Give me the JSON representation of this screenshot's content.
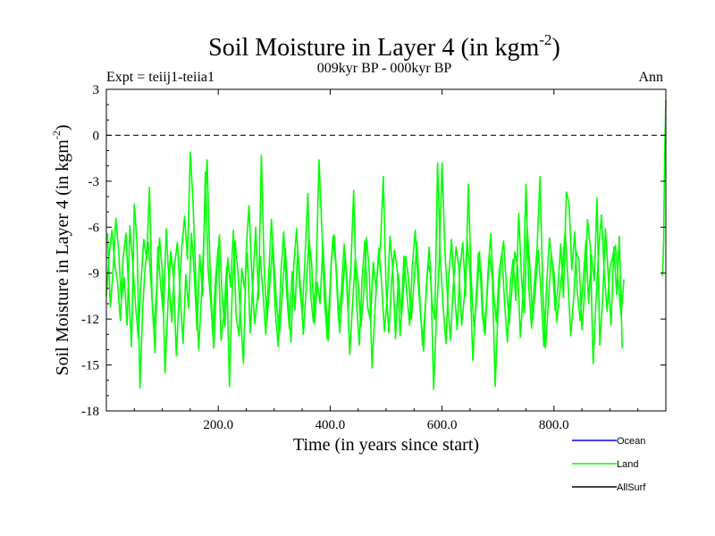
{
  "chart_data": {
    "type": "line",
    "title_main": "Soil Moisture in Layer 4 (in kgm",
    "title_sup": "-2",
    "title_close": ")",
    "subtitle": "009kyr BP - 000kyr BP",
    "expt_label": "Expt = teiij1-teiia1",
    "season_label": "Ann",
    "xlabel": "Time (in years since start)",
    "ylabel_main": "Soil Moisture in Layer 4 (in kgm",
    "ylabel_sup": "-2",
    "ylabel_close": ")",
    "xlim": [
      0,
      1000
    ],
    "ylim": [
      -18,
      3
    ],
    "xticks": [
      200,
      400,
      600,
      800
    ],
    "xtick_labels": [
      "200.0",
      "400.0",
      "600.0",
      "800.0"
    ],
    "yticks": [
      3,
      0,
      -3,
      -6,
      -9,
      -12,
      -15,
      -18
    ],
    "ytick_labels": [
      "3",
      "0",
      "-3",
      "-6",
      "-9",
      "-12",
      "-15",
      "-18"
    ],
    "reference_line": 0,
    "legend_position": "bottom-right",
    "legend": [
      {
        "name": "Ocean",
        "color": "#0000ff"
      },
      {
        "name": "Land",
        "color": "#00ff00"
      },
      {
        "name": "AllSurf",
        "color": "#000000"
      }
    ],
    "series": [
      {
        "name": "Land",
        "color": "#00ff00",
        "x_start": 0,
        "x_step": 5,
        "values": [
          -10.5,
          -7.8,
          -6.2,
          -8.4,
          -9.6,
          -12.1,
          -8.0,
          -6.4,
          -10.2,
          -13.8,
          -4.5,
          -7.1,
          -16.5,
          -11.2,
          -8.3,
          -7.0,
          -9.8,
          -12.6,
          -10.1,
          -6.7,
          -8.9,
          -15.5,
          -11.0,
          -7.6,
          -9.2,
          -14.4,
          -10.6,
          -7.2,
          -5.3,
          -8.1,
          -1.1,
          -4.4,
          -9.6,
          -14.0,
          -10.5,
          -6.0,
          -1.6,
          -8.2,
          -12.9,
          -9.4,
          -7.3,
          -13.4,
          -11.7,
          -8.6,
          -16.4,
          -10.0,
          -6.9,
          -8.8,
          -11.9,
          -14.9,
          -7.5,
          -4.6,
          -9.1,
          -12.3,
          -10.7,
          -7.9,
          -10.3,
          -13.0,
          -9.3,
          -5.5,
          -8.6,
          -11.4,
          -12.8,
          -9.8,
          -7.4,
          -10.9,
          -13.5,
          -8.5,
          -6.1,
          -9.7,
          -11.6,
          -8.2,
          -3.8,
          -10.4,
          -12.2,
          -9.0,
          -1.6,
          -5.9,
          -10.8,
          -13.3,
          -9.7,
          -6.6,
          -8.4,
          -12.1,
          -10.2,
          -7.1,
          -9.5,
          -14.3,
          -11.1,
          -8.0,
          -9.7,
          -12.5,
          -10.3,
          -6.7,
          -8.9,
          -15.2,
          -11.4,
          -8.7,
          -7.2,
          -2.7,
          -10.1,
          -12.9,
          -9.4,
          -7.5,
          -8.8,
          -13.1,
          -10.6,
          -7.9,
          -9.3,
          -12.0,
          -9.6,
          -7.0,
          -10.4,
          -13.7,
          -11.3,
          -8.4,
          -9.2,
          -16.6,
          -11.9,
          -8.1,
          -1.8,
          -7.4,
          -10.8,
          -13.4,
          -9.9,
          -7.3,
          -8.6,
          -12.4,
          -10.5,
          -6.8,
          -9.1,
          -14.7,
          -11.2,
          -7.7,
          -8.9,
          -12.8,
          -10.7,
          -7.8,
          -9.4,
          -16.4,
          -11.5,
          -8.2,
          -6.9,
          -9.8,
          -12.3,
          -10.0,
          -7.6,
          -8.5,
          -13.2,
          -10.3,
          -3.2,
          -9.9,
          -12.6,
          -9.7,
          -7.3,
          -2.7,
          -10.1,
          -13.9,
          -11.0,
          -7.8,
          -8.9,
          -12.2,
          -10.4,
          -8.6,
          -6.3,
          -9.4,
          -13.1,
          -10.8,
          -7.6,
          -8.2,
          -12.7,
          -10.2,
          -5.5,
          -7.3,
          -14.9,
          -10.9,
          -7.4,
          -5.2,
          -9.0,
          -11.5,
          -8.7,
          -7.9,
          -7.2,
          -9.7,
          -11.8,
          -9.4
        ]
      },
      {
        "name": "Land",
        "color": "#00ff00",
        "x_start": 2,
        "x_step": 5,
        "values": [
          -6.4,
          -11.2,
          -8.9,
          -5.4,
          -7.6,
          -10.8,
          -9.3,
          -12.4,
          -5.9,
          -8.3,
          -11.0,
          -13.2,
          -9.5,
          -6.8,
          -8.1,
          -3.4,
          -10.9,
          -14.2,
          -7.3,
          -9.8,
          -11.7,
          -6.1,
          -9.6,
          -12.2,
          -8.4,
          -7.0,
          -10.3,
          -13.6,
          -9.1,
          -11.3,
          -6.4,
          -9.0,
          -12.7,
          -7.8,
          -10.5,
          -2.4,
          -8.8,
          -11.1,
          -13.9,
          -9.2,
          -6.5,
          -10.6,
          -12.5,
          -8.0,
          -9.9,
          -6.2,
          -11.8,
          -13.1,
          -8.7,
          -10.0,
          -7.7,
          -12.9,
          -9.5,
          -6.0,
          -10.7,
          -1.3,
          -8.5,
          -12.1,
          -9.8,
          -7.2,
          -11.6,
          -13.8,
          -9.0,
          -6.3,
          -10.2,
          -12.6,
          -8.9,
          -11.4,
          -7.5,
          -9.9,
          -13.0,
          -10.1,
          -6.7,
          -8.4,
          -12.3,
          -9.6,
          -11.0,
          -7.1,
          -10.6,
          -13.4,
          -8.2,
          -6.5,
          -9.3,
          -12.9,
          -10.4,
          -7.8,
          -11.5,
          -8.6,
          -3.6,
          -10.8,
          -13.7,
          -9.4,
          -6.9,
          -11.2,
          -12.1,
          -8.3,
          -10.0,
          -7.4,
          -9.7,
          -12.8,
          -10.6,
          -6.6,
          -8.8,
          -13.3,
          -9.1,
          -11.7,
          -7.9,
          -10.3,
          -12.4,
          -8.5,
          -6.2,
          -9.5,
          -11.9,
          -14.1,
          -9.8,
          -7.3,
          -10.9,
          -12.0,
          -1.8,
          -8.0,
          -11.3,
          -13.6,
          -9.2,
          -6.8,
          -10.1,
          -12.7,
          -8.7,
          -7.0,
          -10.5,
          -3.2,
          -9.4,
          -12.5,
          -10.7,
          -7.6,
          -11.8,
          -13.0,
          -9.0,
          -6.4,
          -10.2,
          -12.2,
          -8.9,
          -7.7,
          -11.1,
          -13.5,
          -9.6,
          -8.1,
          -10.8,
          -5.1,
          -9.3,
          -11.6,
          -6.0,
          -8.6,
          -12.0,
          -9.9,
          -7.5,
          -10.4,
          -13.8,
          -9.7,
          -6.7,
          -8.3,
          -11.4,
          -10.0,
          -7.1,
          -10.6,
          -3.7,
          -4.4,
          -8.8,
          -6.3,
          -10.3,
          -12.1,
          -9.6,
          -6.9,
          -11.0,
          -7.8,
          -9.5,
          -4.1,
          -13.7,
          -10.7,
          -6.1,
          -9.1,
          -12.4,
          -7.3,
          -10.4,
          -6.6,
          -13.9
        ]
      },
      {
        "name": "Land",
        "color": "#00ff00",
        "x_end_points": [
          [
            994,
            -9.2
          ],
          [
            996,
            -7.1
          ],
          [
            997,
            -4.0
          ],
          [
            998,
            -1.2
          ],
          [
            999,
            0.6
          ],
          [
            1000,
            2.3
          ]
        ]
      }
    ]
  }
}
